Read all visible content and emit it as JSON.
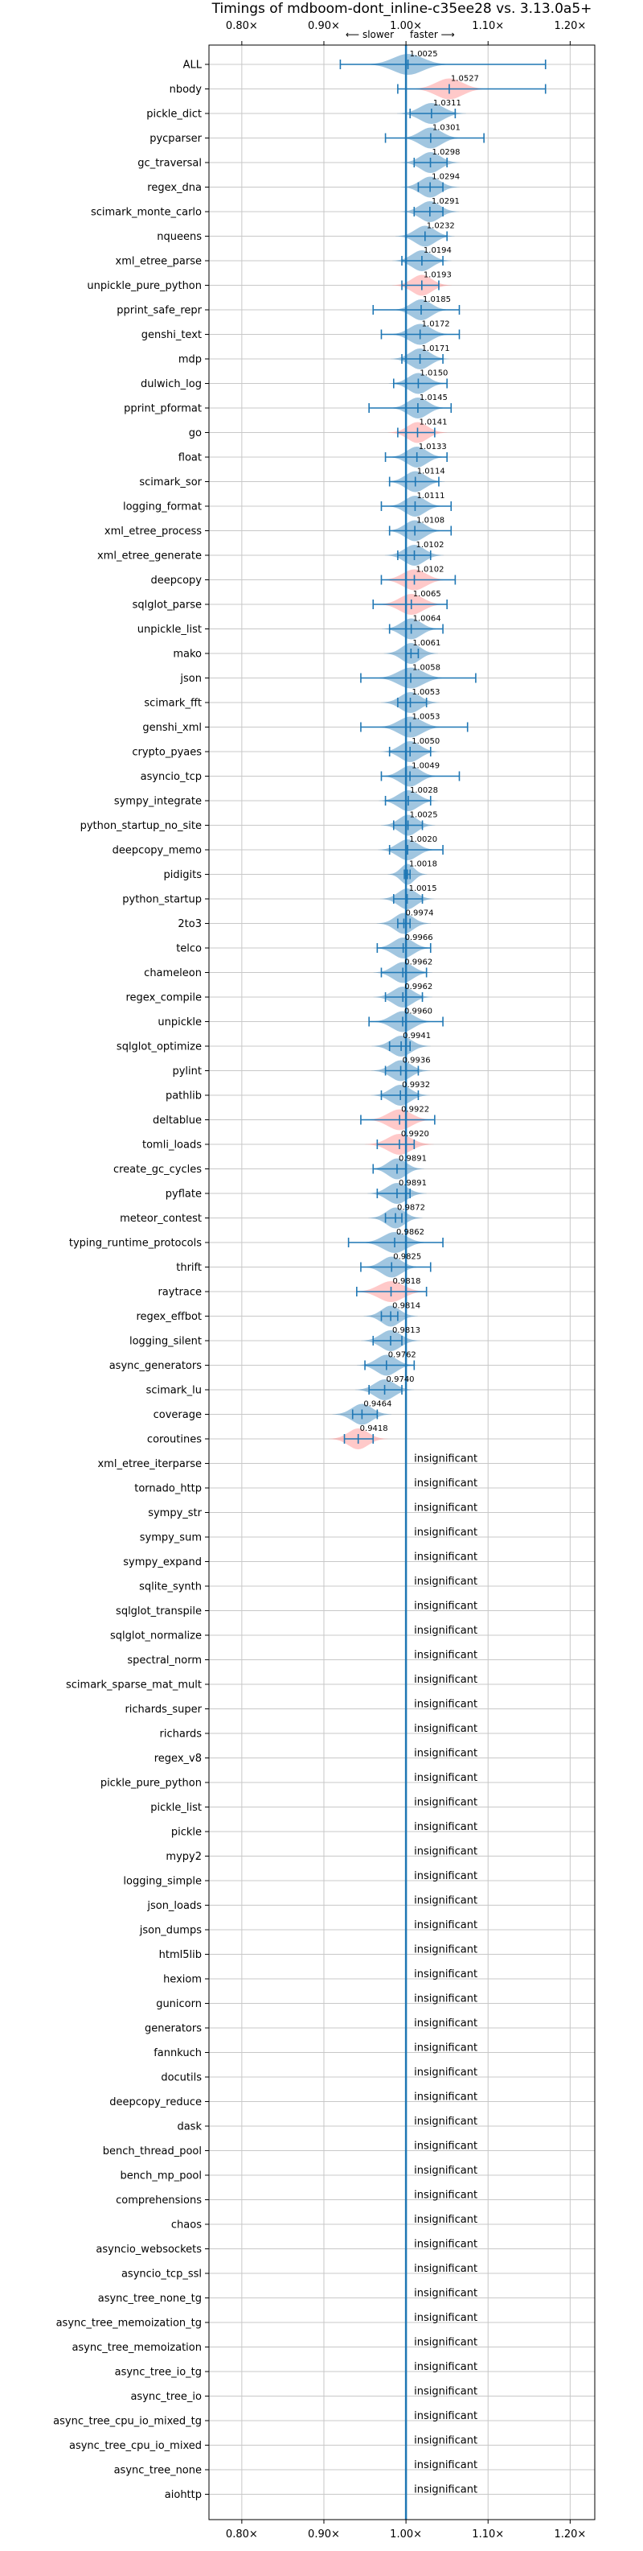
{
  "chart_data": {
    "type": "violin",
    "title": "Timings of mdboom-dont_inline-c35ee28 vs. 3.13.0a5+",
    "direction_left": "⟵ slower",
    "direction_right": "faster ⟶",
    "xlim": [
      0.76,
      1.23
    ],
    "xticks": [
      0.8,
      0.9,
      1.0,
      1.1,
      1.2
    ],
    "xtick_labels": [
      "0.80×",
      "0.90×",
      "1.00×",
      "1.10×",
      "1.20×"
    ],
    "grid": true,
    "colors": {
      "faster": "#1f77b4",
      "slower": "#ff7f7f",
      "baseline": "#1f77b4"
    },
    "benchmarks": [
      {
        "name": "ALL",
        "value": 1.0025,
        "label": "1.0025",
        "min": 0.92,
        "max": 1.17,
        "width": 0.018,
        "status": "faster"
      },
      {
        "name": "nbody",
        "value": 1.0527,
        "label": "1.0527",
        "min": 0.99,
        "max": 1.17,
        "width": 0.016,
        "status": "slower"
      },
      {
        "name": "pickle_dict",
        "value": 1.0311,
        "label": "1.0311",
        "min": 1.005,
        "max": 1.06,
        "width": 0.014,
        "status": "faster"
      },
      {
        "name": "pycparser",
        "value": 1.0301,
        "label": "1.0301",
        "min": 0.975,
        "max": 1.095,
        "width": 0.013,
        "status": "faster"
      },
      {
        "name": "gc_traversal",
        "value": 1.0298,
        "label": "1.0298",
        "min": 1.01,
        "max": 1.05,
        "width": 0.012,
        "status": "faster"
      },
      {
        "name": "regex_dna",
        "value": 1.0294,
        "label": "1.0294",
        "min": 1.015,
        "max": 1.045,
        "width": 0.012,
        "status": "faster"
      },
      {
        "name": "scimark_monte_carlo",
        "value": 1.0291,
        "label": "1.0291",
        "min": 1.01,
        "max": 1.045,
        "width": 0.012,
        "status": "faster"
      },
      {
        "name": "nqueens",
        "value": 1.0232,
        "label": "1.0232",
        "min": 1.0,
        "max": 1.05,
        "width": 0.012,
        "status": "faster"
      },
      {
        "name": "xml_etree_parse",
        "value": 1.0194,
        "label": "1.0194",
        "min": 0.995,
        "max": 1.045,
        "width": 0.012,
        "status": "faster"
      },
      {
        "name": "unpickle_pure_python",
        "value": 1.0193,
        "label": "1.0193",
        "min": 0.995,
        "max": 1.04,
        "width": 0.012,
        "status": "slower"
      },
      {
        "name": "pprint_safe_repr",
        "value": 1.0185,
        "label": "1.0185",
        "min": 0.96,
        "max": 1.065,
        "width": 0.012,
        "status": "faster"
      },
      {
        "name": "genshi_text",
        "value": 1.0172,
        "label": "1.0172",
        "min": 0.97,
        "max": 1.065,
        "width": 0.013,
        "status": "faster"
      },
      {
        "name": "mdp",
        "value": 1.0171,
        "label": "1.0171",
        "min": 0.995,
        "max": 1.045,
        "width": 0.012,
        "status": "faster"
      },
      {
        "name": "dulwich_log",
        "value": 1.015,
        "label": "1.0150",
        "min": 0.985,
        "max": 1.05,
        "width": 0.012,
        "status": "faster"
      },
      {
        "name": "pprint_pformat",
        "value": 1.0145,
        "label": "1.0145",
        "min": 0.955,
        "max": 1.055,
        "width": 0.012,
        "status": "faster"
      },
      {
        "name": "go",
        "value": 1.0141,
        "label": "1.0141",
        "min": 0.99,
        "max": 1.035,
        "width": 0.012,
        "status": "slower"
      },
      {
        "name": "float",
        "value": 1.0133,
        "label": "1.0133",
        "min": 0.975,
        "max": 1.05,
        "width": 0.012,
        "status": "faster"
      },
      {
        "name": "scimark_sor",
        "value": 1.0114,
        "label": "1.0114",
        "min": 0.98,
        "max": 1.04,
        "width": 0.012,
        "status": "faster"
      },
      {
        "name": "logging_format",
        "value": 1.0111,
        "label": "1.0111",
        "min": 0.97,
        "max": 1.055,
        "width": 0.012,
        "status": "faster"
      },
      {
        "name": "xml_etree_process",
        "value": 1.0108,
        "label": "1.0108",
        "min": 0.98,
        "max": 1.055,
        "width": 0.012,
        "status": "faster"
      },
      {
        "name": "xml_etree_generate",
        "value": 1.0102,
        "label": "1.0102",
        "min": 0.99,
        "max": 1.03,
        "width": 0.012,
        "status": "faster"
      },
      {
        "name": "deepcopy",
        "value": 1.0102,
        "label": "1.0102",
        "min": 0.97,
        "max": 1.06,
        "width": 0.014,
        "status": "slower"
      },
      {
        "name": "sqlglot_parse",
        "value": 1.0065,
        "label": "1.0065",
        "min": 0.96,
        "max": 1.05,
        "width": 0.014,
        "status": "slower"
      },
      {
        "name": "unpickle_list",
        "value": 1.0064,
        "label": "1.0064",
        "min": 0.98,
        "max": 1.045,
        "width": 0.012,
        "status": "faster"
      },
      {
        "name": "mako",
        "value": 1.0061,
        "label": "1.0061",
        "min": 1.0,
        "max": 1.015,
        "width": 0.011,
        "status": "faster"
      },
      {
        "name": "json",
        "value": 1.0058,
        "label": "1.0058",
        "min": 0.945,
        "max": 1.085,
        "width": 0.015,
        "status": "faster"
      },
      {
        "name": "scimark_fft",
        "value": 1.0053,
        "label": "1.0053",
        "min": 0.99,
        "max": 1.025,
        "width": 0.012,
        "status": "faster"
      },
      {
        "name": "genshi_xml",
        "value": 1.0053,
        "label": "1.0053",
        "min": 0.945,
        "max": 1.075,
        "width": 0.014,
        "status": "faster"
      },
      {
        "name": "crypto_pyaes",
        "value": 1.005,
        "label": "1.0050",
        "min": 0.98,
        "max": 1.03,
        "width": 0.012,
        "status": "faster"
      },
      {
        "name": "asyncio_tcp",
        "value": 1.0049,
        "label": "1.0049",
        "min": 0.97,
        "max": 1.065,
        "width": 0.012,
        "status": "faster"
      },
      {
        "name": "sympy_integrate",
        "value": 1.0028,
        "label": "1.0028",
        "min": 0.975,
        "max": 1.03,
        "width": 0.012,
        "status": "faster"
      },
      {
        "name": "python_startup_no_site",
        "value": 1.0025,
        "label": "1.0025",
        "min": 0.985,
        "max": 1.02,
        "width": 0.011,
        "status": "faster"
      },
      {
        "name": "deepcopy_memo",
        "value": 1.002,
        "label": "1.0020",
        "min": 0.98,
        "max": 1.045,
        "width": 0.012,
        "status": "faster"
      },
      {
        "name": "pidigits",
        "value": 1.0018,
        "label": "1.0018",
        "min": 0.998,
        "max": 1.005,
        "width": 0.008,
        "status": "faster"
      },
      {
        "name": "python_startup",
        "value": 1.0015,
        "label": "1.0015",
        "min": 0.985,
        "max": 1.02,
        "width": 0.011,
        "status": "faster"
      },
      {
        "name": "2to3",
        "value": 0.9974,
        "label": "0.9974",
        "min": 0.99,
        "max": 1.005,
        "width": 0.011,
        "status": "faster"
      },
      {
        "name": "telco",
        "value": 0.9966,
        "label": "0.9966",
        "min": 0.965,
        "max": 1.03,
        "width": 0.012,
        "status": "faster"
      },
      {
        "name": "chameleon",
        "value": 0.9962,
        "label": "0.9962",
        "min": 0.97,
        "max": 1.025,
        "width": 0.012,
        "status": "faster"
      },
      {
        "name": "regex_compile",
        "value": 0.9962,
        "label": "0.9962",
        "min": 0.975,
        "max": 1.02,
        "width": 0.012,
        "status": "faster"
      },
      {
        "name": "unpickle",
        "value": 0.996,
        "label": "0.9960",
        "min": 0.955,
        "max": 1.045,
        "width": 0.013,
        "status": "faster"
      },
      {
        "name": "sqlglot_optimize",
        "value": 0.9941,
        "label": "0.9941",
        "min": 0.98,
        "max": 1.005,
        "width": 0.012,
        "status": "faster"
      },
      {
        "name": "pylint",
        "value": 0.9936,
        "label": "0.9936",
        "min": 0.975,
        "max": 1.015,
        "width": 0.012,
        "status": "faster"
      },
      {
        "name": "pathlib",
        "value": 0.9932,
        "label": "0.9932",
        "min": 0.97,
        "max": 1.015,
        "width": 0.012,
        "status": "faster"
      },
      {
        "name": "deltablue",
        "value": 0.9922,
        "label": "0.9922",
        "min": 0.945,
        "max": 1.035,
        "width": 0.014,
        "status": "slower"
      },
      {
        "name": "tomli_loads",
        "value": 0.992,
        "label": "0.9920",
        "min": 0.965,
        "max": 1.01,
        "width": 0.014,
        "status": "slower"
      },
      {
        "name": "create_gc_cycles",
        "value": 0.9891,
        "label": "0.9891",
        "min": 0.96,
        "max": 1.0,
        "width": 0.011,
        "status": "faster"
      },
      {
        "name": "pyflate",
        "value": 0.9891,
        "label": "0.9891",
        "min": 0.965,
        "max": 1.005,
        "width": 0.012,
        "status": "faster"
      },
      {
        "name": "meteor_contest",
        "value": 0.9872,
        "label": "0.9872",
        "min": 0.975,
        "max": 0.995,
        "width": 0.011,
        "status": "faster"
      },
      {
        "name": "typing_runtime_protocols",
        "value": 0.9862,
        "label": "0.9862",
        "min": 0.93,
        "max": 1.045,
        "width": 0.014,
        "status": "faster"
      },
      {
        "name": "thrift",
        "value": 0.9825,
        "label": "0.9825",
        "min": 0.945,
        "max": 1.03,
        "width": 0.012,
        "status": "faster"
      },
      {
        "name": "raytrace",
        "value": 0.9818,
        "label": "0.9818",
        "min": 0.94,
        "max": 1.025,
        "width": 0.015,
        "status": "slower"
      },
      {
        "name": "regex_effbot",
        "value": 0.9814,
        "label": "0.9814",
        "min": 0.97,
        "max": 0.99,
        "width": 0.011,
        "status": "faster"
      },
      {
        "name": "logging_silent",
        "value": 0.9813,
        "label": "0.9813",
        "min": 0.96,
        "max": 0.995,
        "width": 0.012,
        "status": "faster"
      },
      {
        "name": "async_generators",
        "value": 0.9762,
        "label": "0.9762",
        "min": 0.95,
        "max": 1.01,
        "width": 0.012,
        "status": "faster"
      },
      {
        "name": "scimark_lu",
        "value": 0.974,
        "label": "0.9740",
        "min": 0.955,
        "max": 0.995,
        "width": 0.012,
        "status": "faster"
      },
      {
        "name": "coverage",
        "value": 0.9464,
        "label": "0.9464",
        "min": 0.935,
        "max": 0.965,
        "width": 0.012,
        "status": "faster"
      },
      {
        "name": "coroutines",
        "value": 0.9418,
        "label": "0.9418",
        "min": 0.925,
        "max": 0.96,
        "width": 0.012,
        "status": "slower"
      }
    ],
    "insignificant_label": "insignificant",
    "insignificant": [
      "xml_etree_iterparse",
      "tornado_http",
      "sympy_str",
      "sympy_sum",
      "sympy_expand",
      "sqlite_synth",
      "sqlglot_transpile",
      "sqlglot_normalize",
      "spectral_norm",
      "scimark_sparse_mat_mult",
      "richards_super",
      "richards",
      "regex_v8",
      "pickle_pure_python",
      "pickle_list",
      "pickle",
      "mypy2",
      "logging_simple",
      "json_loads",
      "json_dumps",
      "html5lib",
      "hexiom",
      "gunicorn",
      "generators",
      "fannkuch",
      "docutils",
      "deepcopy_reduce",
      "dask",
      "bench_thread_pool",
      "bench_mp_pool",
      "comprehensions",
      "chaos",
      "asyncio_websockets",
      "asyncio_tcp_ssl",
      "async_tree_none_tg",
      "async_tree_memoization_tg",
      "async_tree_memoization",
      "async_tree_io_tg",
      "async_tree_io",
      "async_tree_cpu_io_mixed_tg",
      "async_tree_cpu_io_mixed",
      "async_tree_none",
      "aiohttp"
    ]
  }
}
